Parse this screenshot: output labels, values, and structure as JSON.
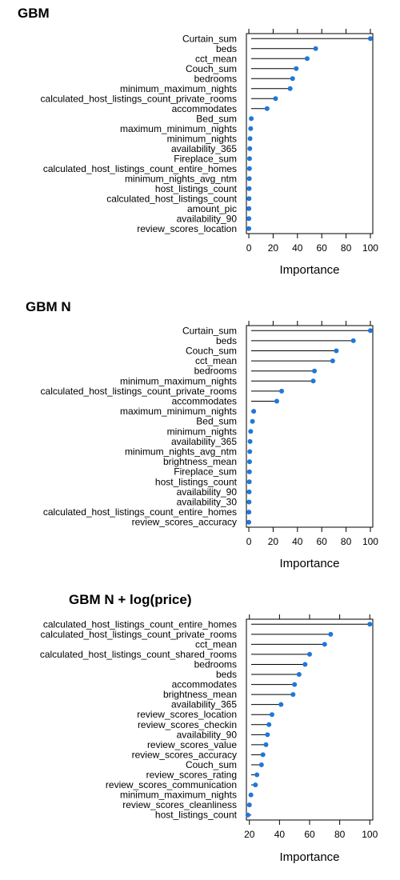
{
  "chart_data": [
    {
      "type": "dot",
      "title": "GBM",
      "xlabel": "Importance",
      "xticks": [
        0,
        20,
        40,
        60,
        80,
        100
      ],
      "xlim": [
        -2,
        102
      ],
      "point_color": "#1f78d8",
      "items": [
        {
          "label": "Curtain_sum",
          "value": 100
        },
        {
          "label": "beds",
          "value": 55
        },
        {
          "label": "cct_mean",
          "value": 48
        },
        {
          "label": "Couch_sum",
          "value": 39
        },
        {
          "label": "bedrooms",
          "value": 36
        },
        {
          "label": "minimum_maximum_nights",
          "value": 34
        },
        {
          "label": "calculated_host_listings_count_private_rooms",
          "value": 22
        },
        {
          "label": "accommodates",
          "value": 15
        },
        {
          "label": "Bed_sum",
          "value": 2
        },
        {
          "label": "maximum_minimum_nights",
          "value": 1.5
        },
        {
          "label": "minimum_nights",
          "value": 1
        },
        {
          "label": "availability_365",
          "value": 0.8
        },
        {
          "label": "Fireplace_sum",
          "value": 0.6
        },
        {
          "label": "calculated_host_listings_count_entire_homes",
          "value": 0.5
        },
        {
          "label": "minimum_nights_avg_ntm",
          "value": 0.4
        },
        {
          "label": "host_listings_count",
          "value": 0.3
        },
        {
          "label": "calculated_host_listings_count",
          "value": 0.2
        },
        {
          "label": "amount_pic",
          "value": 0.1
        },
        {
          "label": "availability_90",
          "value": 0.05
        },
        {
          "label": "review_scores_location",
          "value": 0
        }
      ]
    },
    {
      "type": "dot",
      "title": "GBM N",
      "xlabel": "Importance",
      "xticks": [
        0,
        20,
        40,
        60,
        80,
        100
      ],
      "xlim": [
        -2,
        102
      ],
      "point_color": "#1f78d8",
      "items": [
        {
          "label": "Curtain_sum",
          "value": 100
        },
        {
          "label": "beds",
          "value": 86
        },
        {
          "label": "Couch_sum",
          "value": 72
        },
        {
          "label": "cct_mean",
          "value": 69
        },
        {
          "label": "bedrooms",
          "value": 54
        },
        {
          "label": "minimum_maximum_nights",
          "value": 53
        },
        {
          "label": "calculated_host_listings_count_private_rooms",
          "value": 27
        },
        {
          "label": "accommodates",
          "value": 23
        },
        {
          "label": "maximum_minimum_nights",
          "value": 4
        },
        {
          "label": "Bed_sum",
          "value": 3
        },
        {
          "label": "minimum_nights",
          "value": 1.5
        },
        {
          "label": "availability_365",
          "value": 1
        },
        {
          "label": "minimum_nights_avg_ntm",
          "value": 0.8
        },
        {
          "label": "brightness_mean",
          "value": 0.6
        },
        {
          "label": "Fireplace_sum",
          "value": 0.5
        },
        {
          "label": "host_listings_count",
          "value": 0.4
        },
        {
          "label": "availability_90",
          "value": 0.3
        },
        {
          "label": "availability_30",
          "value": 0.2
        },
        {
          "label": "calculated_host_listings_count_entire_homes",
          "value": 0.1
        },
        {
          "label": "review_scores_accuracy",
          "value": 0
        }
      ]
    },
    {
      "type": "dot",
      "title": "GBM N + log(price)",
      "xlabel": "Importance",
      "xticks": [
        20,
        40,
        60,
        80,
        100
      ],
      "xlim": [
        18,
        102
      ],
      "point_color": "#1f78d8",
      "items": [
        {
          "label": "calculated_host_listings_count_entire_homes",
          "value": 100
        },
        {
          "label": "calculated_host_listings_count_private_rooms",
          "value": 74
        },
        {
          "label": "cct_mean",
          "value": 70
        },
        {
          "label": "calculated_host_listings_count_shared_rooms",
          "value": 60
        },
        {
          "label": "bedrooms",
          "value": 57
        },
        {
          "label": "beds",
          "value": 53
        },
        {
          "label": "accommodates",
          "value": 50
        },
        {
          "label": "brightness_mean",
          "value": 49
        },
        {
          "label": "availability_365",
          "value": 41
        },
        {
          "label": "review_scores_location",
          "value": 35
        },
        {
          "label": "review_scores_checkin",
          "value": 33
        },
        {
          "label": "availability_90",
          "value": 32
        },
        {
          "label": "review_scores_value",
          "value": 31
        },
        {
          "label": "review_scores_accuracy",
          "value": 29
        },
        {
          "label": "Couch_sum",
          "value": 28
        },
        {
          "label": "review_scores_rating",
          "value": 25
        },
        {
          "label": "review_scores_communication",
          "value": 24
        },
        {
          "label": "minimum_maximum_nights",
          "value": 21
        },
        {
          "label": "review_scores_cleanliness",
          "value": 20
        },
        {
          "label": "host_listings_count",
          "value": 19
        }
      ]
    }
  ]
}
